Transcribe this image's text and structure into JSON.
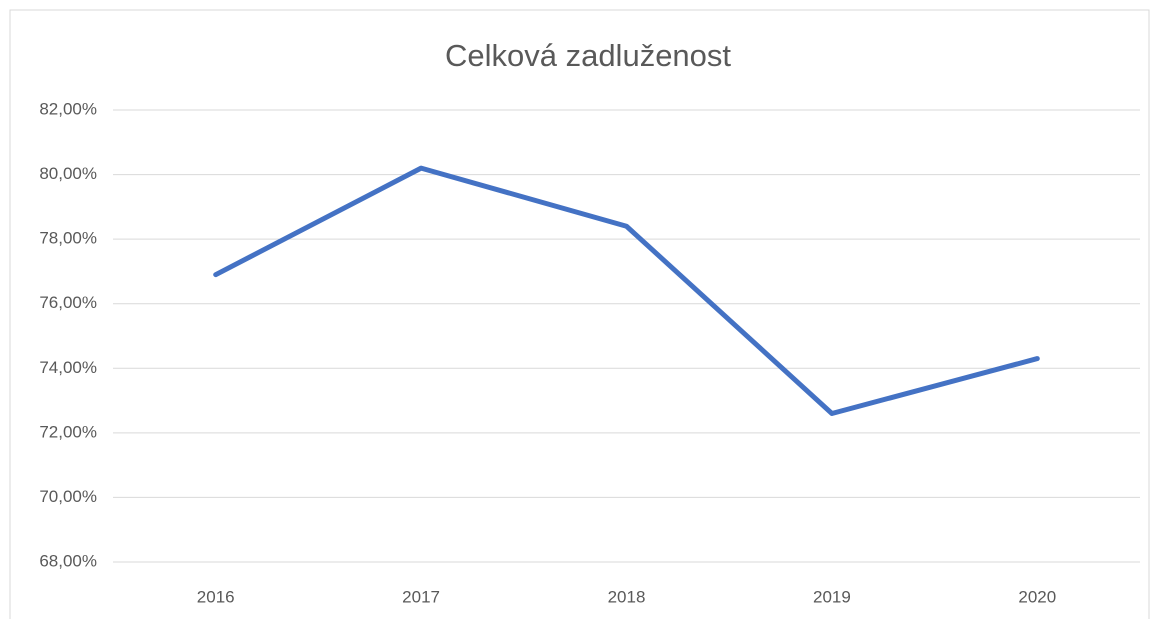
{
  "chart_data": {
    "type": "line",
    "title": "Celková zadluženost",
    "categories": [
      "2016",
      "2017",
      "2018",
      "2019",
      "2020"
    ],
    "series": [
      {
        "name": "Celková zadluženost",
        "color": "#4472c4",
        "values": [
          76.9,
          80.2,
          78.4,
          72.6,
          74.3
        ]
      }
    ],
    "ylim": [
      68,
      82
    ],
    "yticks": [
      {
        "value": 68,
        "label": "68,00%"
      },
      {
        "value": 70,
        "label": "70,00%"
      },
      {
        "value": 72,
        "label": "72,00%"
      },
      {
        "value": 74,
        "label": "74,00%"
      },
      {
        "value": 76,
        "label": "76,00%"
      },
      {
        "value": 78,
        "label": "78,00%"
      },
      {
        "value": 80,
        "label": "80,00%"
      },
      {
        "value": 82,
        "label": "82,00%"
      }
    ],
    "grid": true,
    "legend": false
  }
}
